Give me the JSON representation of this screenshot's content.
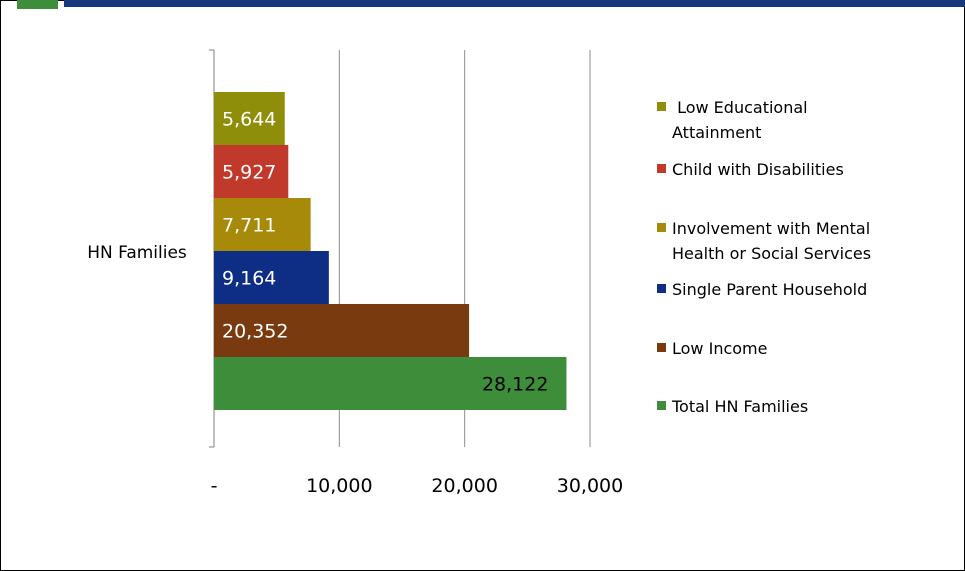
{
  "chart_data": {
    "type": "bar",
    "orientation": "horizontal",
    "categories": [
      "HN Families"
    ],
    "series": [
      {
        "name": "Total HN Families",
        "values": [
          28122
        ],
        "label": "28,122",
        "color": "#3e8d3a",
        "label_dark": true
      },
      {
        "name": "Low Income",
        "values": [
          20352
        ],
        "label": "20,352",
        "color": "#7a3a10"
      },
      {
        "name": "Single Parent Household",
        "values": [
          9164
        ],
        "label": "9,164",
        "color": "#0e2d84"
      },
      {
        "name": "Involvement with Mental Health or Social Services",
        "values": [
          7711
        ],
        "label": "7,711",
        "color": "#a88a0a"
      },
      {
        "name": "Child with Disabilities",
        "values": [
          5927
        ],
        "label": "5,927",
        "color": "#c0392b"
      },
      {
        "name": "Low Educational Attainment",
        "values": [
          5644
        ],
        "label": "5,644",
        "color": "#8f8e0a"
      }
    ],
    "legend": [
      {
        "lines": [
          " Low Educational",
          "Attainment"
        ],
        "color": "#8f8e0a"
      },
      {
        "lines": [
          "Child with Disabilities"
        ],
        "color": "#c0392b"
      },
      {
        "lines": [
          "Involvement with Mental",
          "Health or Social Services"
        ],
        "color": "#a88a0a"
      },
      {
        "lines": [
          "Single Parent Household"
        ],
        "color": "#0e2d84"
      },
      {
        "lines": [
          "Low Income"
        ],
        "color": "#7a3a10"
      },
      {
        "lines": [
          "Total HN Families"
        ],
        "color": "#3e8d3a"
      }
    ],
    "xlim": [
      0,
      30000
    ],
    "x_ticks": [
      0,
      10000,
      20000,
      30000
    ],
    "x_tick_labels": [
      "-",
      "10,000",
      "20,000",
      "30,000"
    ],
    "grid": "vertical",
    "legend_position": "right"
  }
}
